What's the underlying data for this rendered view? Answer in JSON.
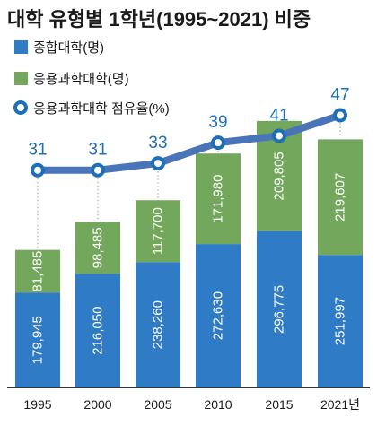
{
  "chart_data": {
    "type": "bar",
    "title": "대학 유형별 1학년(1995~2021) 비중",
    "categories": [
      "1995",
      "2000",
      "2005",
      "2010",
      "2015",
      "2021년"
    ],
    "series": [
      {
        "name": "종합대학(명)",
        "values": [
          179945,
          216050,
          238260,
          272630,
          296775,
          251997
        ]
      },
      {
        "name": "응용과학대학(명)",
        "values": [
          81485,
          98485,
          117700,
          171980,
          209805,
          219607
        ]
      }
    ],
    "line_series": {
      "name": "응용과학대학 점유율(%)",
      "values": [
        31,
        31,
        33,
        39,
        41,
        47
      ]
    },
    "value_labels": {
      "university": [
        "179,945",
        "216,050",
        "238,260",
        "272,630",
        "296,775",
        "251,997"
      ],
      "applied": [
        "81,485",
        "98,485",
        "117,700",
        "171,980",
        "209,805",
        "219,607"
      ]
    },
    "stacked": true,
    "ylim": [
      0,
      520000
    ],
    "line_ylim": [
      15,
      50
    ],
    "legend_position": "top-left",
    "grid": false
  },
  "colors": {
    "university": "#2f7bc6",
    "applied": "#73a75c",
    "line": "#4a74b8",
    "marker_stroke": "#1f6fb8",
    "pct_text": "#1f6fb8"
  }
}
